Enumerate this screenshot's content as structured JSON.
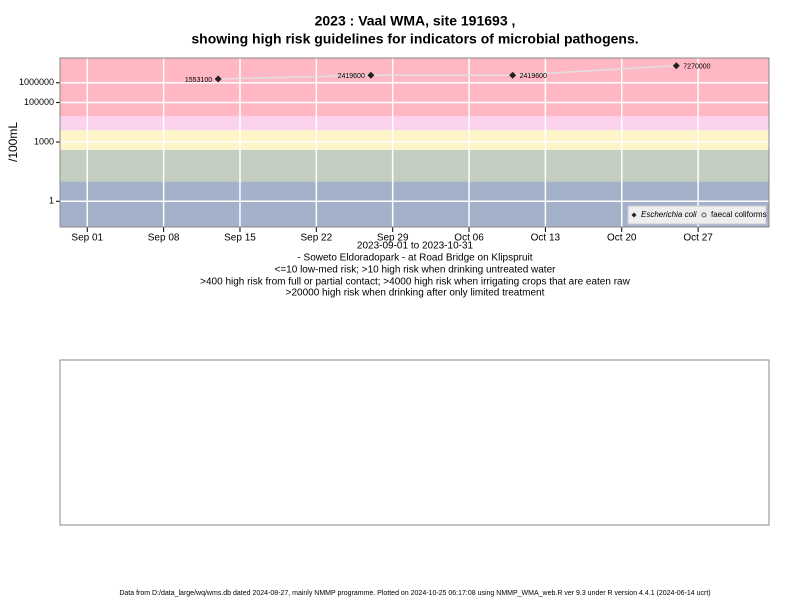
{
  "chart_data": {
    "type": "scatter",
    "title": "2023 : Vaal WMA, site 191693 ,",
    "subtitle": "showing high risk guidelines for indicators of microbial pathogens.",
    "y_label": "/100mL",
    "x_label": "2023-09-01 to 2023-10-31",
    "notes": [
      "- Soweto Eldoradopark - at Road Bridge on Klipspruit",
      "<=10 low-med risk; >10 high risk when drinking untreated water",
      ">400 high risk from full or partial contact; >4000 high risk when irrigating crops that are eaten raw",
      ">20000 high risk when drinking after only limited treatment"
    ],
    "footer": "Data from D:/data_large/wq/wms.db dated 2024-08-27, mainly NMMP programme. Plotted on 2024-10-25 06:17:08 using NMMP_WMA_web.R ver 9.3 under R version 4.4.1 (2024-06-14 ucrt)",
    "x": [
      "2023-09-13",
      "2023-09-27",
      "2023-10-10",
      "2023-10-25"
    ],
    "series": [
      {
        "name": "Escherichia coli",
        "color": "#222222",
        "values": [
          1553100,
          2419600,
          2419600,
          7270000
        ]
      },
      {
        "name": "faecal coliforms",
        "color": "#555555",
        "values": [
          null,
          null,
          null,
          null
        ]
      }
    ],
    "line_color": "#e0e0e0",
    "xlim": [
      "2023-08-29T12:00",
      "2023-11-02T12:00"
    ],
    "xticks": [
      {
        "value": "2023-09-01",
        "label": "Sep 01"
      },
      {
        "value": "2023-09-08",
        "label": "Sep 08"
      },
      {
        "value": "2023-09-15",
        "label": "Sep 15"
      },
      {
        "value": "2023-09-22",
        "label": "Sep 22"
      },
      {
        "value": "2023-09-29",
        "label": "Sep 29"
      },
      {
        "value": "2023-10-06",
        "label": "Oct 06"
      },
      {
        "value": "2023-10-13",
        "label": "Oct 13"
      },
      {
        "value": "2023-10-20",
        "label": "Oct 20"
      },
      {
        "value": "2023-10-27",
        "label": "Oct 27"
      }
    ],
    "ylim": [
      0.05,
      18000000
    ],
    "y_log": true,
    "yticks": [
      1,
      1000,
      100000,
      1000000
    ],
    "grid": true,
    "thresholds": [
      10,
      400,
      4000,
      20000
    ],
    "band_colors": [
      "#a3b1ca",
      "#c4cec0",
      "#fdf4c8",
      "#fbd3ef",
      "#ffb7c3"
    ],
    "legend_position": "bottom-right"
  }
}
